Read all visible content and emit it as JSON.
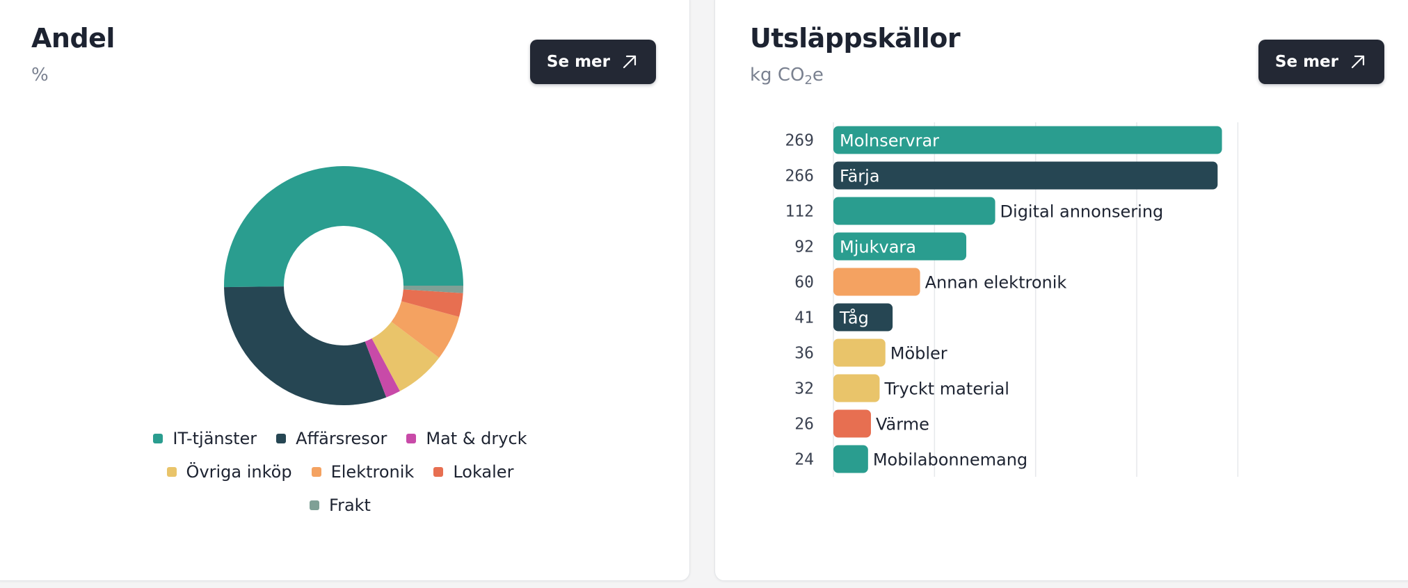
{
  "share_card": {
    "title": "Andel",
    "unit": "%",
    "see_more_label": "Se mer"
  },
  "sources_card": {
    "title": "Utsläppskällor",
    "unit_prefix": "kg CO",
    "unit_sub": "2",
    "unit_suffix": "e",
    "see_more_label": "Se mer"
  },
  "icons": {
    "see_more": "arrow-up-right-icon"
  },
  "chart_data": [
    {
      "type": "pie",
      "variant": "donut",
      "title": "Andel",
      "unit": "%",
      "legend_position": "bottom",
      "slices": [
        {
          "label": "IT-tjänster",
          "value": 50.2,
          "color": "#2a9d8f"
        },
        {
          "label": "Affärsresor",
          "value": 30.6,
          "color": "#264653"
        },
        {
          "label": "Mat & dryck",
          "value": 2.0,
          "color": "#c84aa8"
        },
        {
          "label": "Övriga inköp",
          "value": 6.9,
          "color": "#e9c46a"
        },
        {
          "label": "Elektronik",
          "value": 6.1,
          "color": "#f4a261"
        },
        {
          "label": "Lokaler",
          "value": 3.2,
          "color": "#e76f51"
        },
        {
          "label": "Frakt",
          "value": 1.0,
          "color": "#7fa096"
        }
      ]
    },
    {
      "type": "bar",
      "orientation": "horizontal",
      "title": "Utsläppskällor",
      "unit": "kg CO2e",
      "xlim": [
        0,
        280
      ],
      "grid": true,
      "categories": [
        "Molnservrar",
        "Färja",
        "Digital annonsering",
        "Mjukvara",
        "Annan elektronik",
        "Tåg",
        "Möbler",
        "Tryckt material",
        "Värme",
        "Mobilabonnemang"
      ],
      "values": [
        269,
        266,
        112,
        92,
        60,
        41,
        36,
        32,
        26,
        24
      ],
      "colors": [
        "#2a9d8f",
        "#264653",
        "#2a9d8f",
        "#2a9d8f",
        "#f4a261",
        "#264653",
        "#e9c46a",
        "#e9c46a",
        "#e76f51",
        "#2a9d8f"
      ]
    }
  ]
}
